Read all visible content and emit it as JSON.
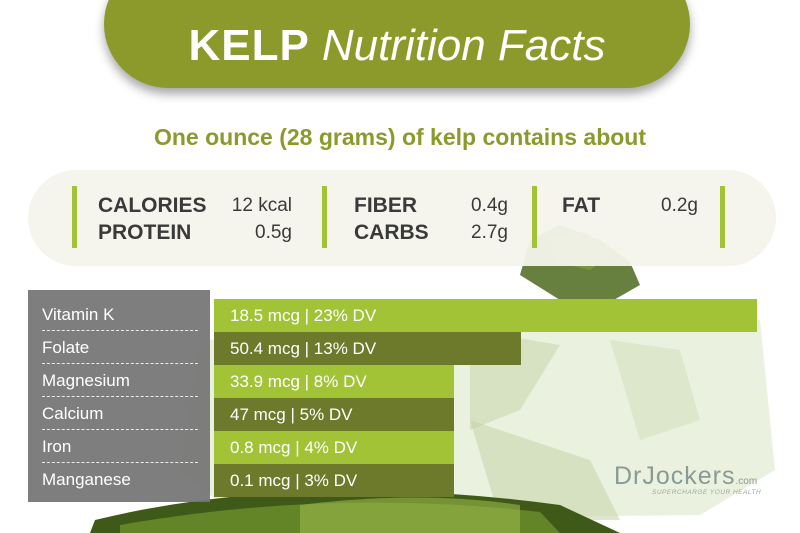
{
  "title": {
    "bold": "KELP",
    "italic": "Nutrition Facts"
  },
  "subtitle": "One ounce (28 grams) of kelp contains about",
  "macros": {
    "calories": {
      "label": "CALORIES",
      "value": "12 kcal"
    },
    "protein": {
      "label": "PROTEIN",
      "value": "0.5g"
    },
    "fiber": {
      "label": "FIBER",
      "value": "0.4g"
    },
    "carbs": {
      "label": "CARBS",
      "value": "2.7g"
    },
    "fat": {
      "label": "FAT",
      "value": "0.2g"
    }
  },
  "logo": {
    "main": "DrJockers",
    "suffix": ".com",
    "tagline": "SUPERCHARGE YOUR HEALTH"
  },
  "colors": {
    "accent": "#8c9a2b",
    "bar_light": "#a2c336",
    "bar_dark": "#6d7a2c",
    "panel": "#767676"
  },
  "chart_data": {
    "type": "bar",
    "orientation": "horizontal",
    "categories": [
      "Vitamin K",
      "Folate",
      "Magnesium",
      "Calcium",
      "Iron",
      "Manganese"
    ],
    "values": [
      23,
      13,
      8,
      5,
      4,
      3
    ],
    "value_labels": [
      "18.5 mcg | 23% DV",
      "50.4 mcg | 13% DV",
      "33.9 mcg | 8% DV",
      "47 mcg | 5% DV",
      "0.8 mcg | 4% DV",
      "0.1 mcg | 3% DV"
    ],
    "grid": false,
    "legend": "none"
  }
}
